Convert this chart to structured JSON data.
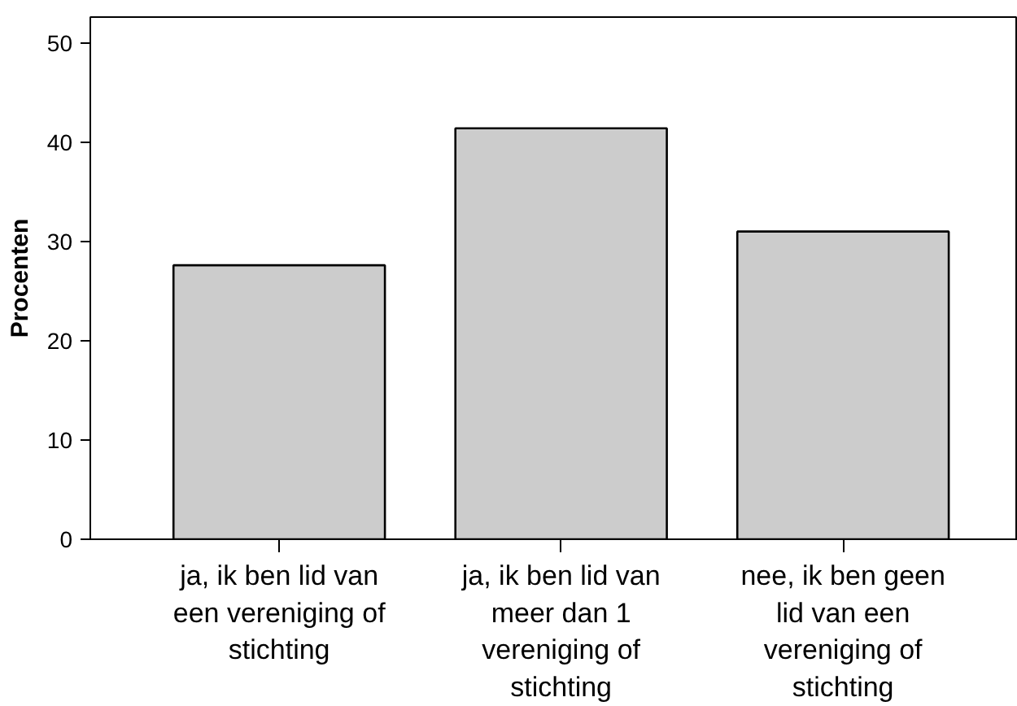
{
  "chart_data": {
    "type": "bar",
    "ylabel": "Procenten",
    "categories": [
      "ja, ik ben lid van\neen vereniging of\nstichting",
      "ja, ik ben lid van\nmeer dan 1\nvereniging of\nstichting",
      "nee, ik ben geen\nlid van een\nvereniging of\nstichting"
    ],
    "values": [
      27.6,
      41.4,
      31.0
    ],
    "color": "#cccccc",
    "ylim": [
      0,
      52.6
    ],
    "yticks": [
      0,
      10,
      20,
      30,
      40,
      50
    ],
    "grid": false
  }
}
